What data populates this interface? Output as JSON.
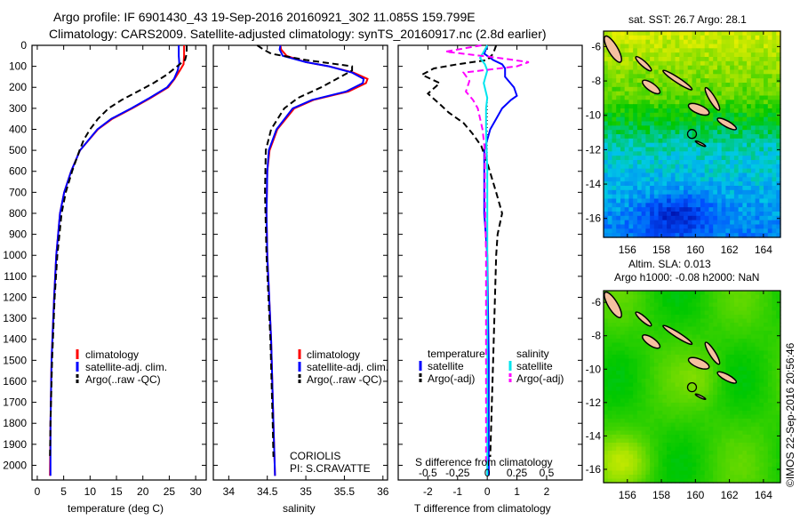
{
  "title": {
    "line1": "Argo profile: IF 6901430_43 19-Sep-2016 20160921_302 11.085S 159.799E",
    "line2": "Climatology: CARS2009. Satellite-adjusted climatology: synTS_20160917.nc (2.8d earlier)"
  },
  "footer_stamp": "©IMOS 22-Sep-2016 20:56:46",
  "colors": {
    "climatology": "#ff0000",
    "satellite": "#0000ff",
    "argo": "#000000",
    "sat_s": "#00e5ee",
    "argo_s": "#ff00ff",
    "land": "#f5c0a0"
  },
  "chart_data": [
    {
      "type": "line",
      "id": "temperature",
      "xlabel": "temperature (deg C)",
      "ylabel": "",
      "xlim": [
        -1,
        32
      ],
      "ylim": [
        0,
        2070
      ],
      "xticks": [
        0,
        5,
        10,
        15,
        20,
        25,
        30
      ],
      "yticks": [
        0,
        100,
        200,
        300,
        400,
        500,
        600,
        700,
        800,
        900,
        1000,
        1100,
        1200,
        1300,
        1400,
        1500,
        1600,
        1700,
        1800,
        1900,
        2000
      ],
      "legend": [
        "climatology",
        "satellite-adj. clim.",
        "Argo(..raw -QC)"
      ],
      "series": [
        {
          "name": "climatology",
          "color": "#ff0000",
          "dash": false,
          "depth": [
            0,
            50,
            90,
            120,
            160,
            200,
            250,
            300,
            350,
            400,
            500,
            600,
            700,
            800,
            1000,
            1200,
            1500,
            1800,
            2050
          ],
          "values": [
            27.8,
            27.8,
            27.7,
            27.0,
            26.0,
            24.8,
            21.5,
            18.0,
            14.2,
            11.5,
            8.1,
            6.4,
            5.1,
            4.3,
            3.6,
            3.2,
            2.7,
            2.5,
            2.4
          ]
        },
        {
          "name": "satellite-adj. clim.",
          "color": "#0000ff",
          "dash": false,
          "depth": [
            0,
            50,
            85,
            120,
            160,
            200,
            250,
            300,
            350,
            400,
            500,
            600,
            700,
            800,
            1000,
            1200,
            1500,
            1800,
            2050
          ],
          "values": [
            26.8,
            26.8,
            26.9,
            26.6,
            25.9,
            24.6,
            21.3,
            17.8,
            14.0,
            11.4,
            8.1,
            6.4,
            5.1,
            4.3,
            3.6,
            3.2,
            2.7,
            2.5,
            2.5
          ]
        },
        {
          "name": "Argo(..raw -QC)",
          "color": "#000000",
          "dash": true,
          "depth": [
            0,
            40,
            70,
            100,
            140,
            180,
            220,
            260,
            300,
            350,
            400,
            450,
            500,
            600,
            700,
            800,
            1000,
            1200,
            1500,
            1800,
            1960
          ],
          "values": [
            28.3,
            28.3,
            28.0,
            26.5,
            24.5,
            22.0,
            19.0,
            16.0,
            13.5,
            11.5,
            10.0,
            8.8,
            8.0,
            6.6,
            5.4,
            4.6,
            3.8,
            3.3,
            2.8,
            2.5,
            2.4
          ]
        }
      ]
    },
    {
      "type": "line",
      "id": "salinity",
      "xlabel": "salinity",
      "xlim": [
        33.8,
        36.06
      ],
      "ylim": [
        0,
        2070
      ],
      "xticks": [
        34,
        34.5,
        35,
        35.5,
        36
      ],
      "legend": [
        "climatology",
        "satellite-adj. clim.",
        "Argo(..raw -QC)"
      ],
      "annotation": [
        "CORIOLIS",
        "PI: S.CRAVATTE"
      ],
      "series": [
        {
          "name": "climatology",
          "color": "#ff0000",
          "dash": false,
          "depth": [
            0,
            20,
            50,
            80,
            100,
            130,
            160,
            180,
            220,
            260,
            300,
            400,
            500,
            600,
            800,
            1000,
            1400,
            1800,
            2050
          ],
          "values": [
            34.67,
            34.68,
            34.75,
            35.0,
            35.3,
            35.62,
            35.8,
            35.78,
            35.55,
            35.1,
            34.85,
            34.63,
            34.53,
            34.5,
            34.49,
            34.5,
            34.55,
            34.58,
            34.6
          ]
        },
        {
          "name": "satellite-adj. clim.",
          "color": "#0000ff",
          "dash": false,
          "depth": [
            0,
            20,
            50,
            80,
            100,
            130,
            160,
            180,
            220,
            260,
            300,
            400,
            500,
            600,
            800,
            1000,
            1400,
            1800,
            2050
          ],
          "values": [
            34.67,
            34.66,
            34.7,
            35.0,
            35.3,
            35.6,
            35.75,
            35.74,
            35.52,
            35.08,
            34.83,
            34.62,
            34.52,
            34.5,
            34.49,
            34.5,
            34.55,
            34.58,
            34.6
          ]
        },
        {
          "name": "Argo(..raw -QC)",
          "color": "#000000",
          "dash": true,
          "depth": [
            0,
            20,
            40,
            70,
            100,
            120,
            150,
            200,
            250,
            300,
            400,
            500,
            700,
            1000,
            1400,
            1800,
            1960
          ],
          "values": [
            34.37,
            34.45,
            34.55,
            35.0,
            35.6,
            35.6,
            35.45,
            35.2,
            34.9,
            34.72,
            34.55,
            34.48,
            34.47,
            34.49,
            34.54,
            34.57,
            34.58
          ]
        }
      ]
    },
    {
      "type": "line",
      "id": "difference",
      "xlabel": "T difference from climatology",
      "xlabel_top": "S difference from climatology",
      "xlim": [
        -3,
        3.2
      ],
      "xlim_s": [
        -0.75,
        0.8
      ],
      "ylim": [
        0,
        2070
      ],
      "xticks": [
        -2,
        -1,
        0,
        1,
        2
      ],
      "xticks_s": [
        "-0.5",
        "-0.25",
        "0",
        "0.25",
        "0.5"
      ],
      "legend_headers": [
        "temperature",
        "salinity"
      ],
      "legend": [
        "satellite",
        "Argo(-adj)",
        "satellite",
        "Argo(-adj)"
      ],
      "series": [
        {
          "name": "T satellite",
          "color": "#0000ff",
          "dash": false,
          "units": "T",
          "depth": [
            0,
            40,
            70,
            90,
            110,
            150,
            200,
            240,
            260,
            300,
            350,
            400,
            500,
            600,
            800,
            1000,
            1500,
            2050
          ],
          "values": [
            0.0,
            -0.1,
            0.2,
            0.5,
            0.6,
            0.6,
            0.9,
            1.0,
            0.8,
            0.5,
            0.3,
            0.1,
            -0.1,
            -0.1,
            -0.1,
            0.0,
            0.05,
            0.05
          ]
        },
        {
          "name": "T Argo(-adj)",
          "color": "#000000",
          "dash": true,
          "units": "T",
          "depth": [
            0,
            40,
            70,
            90,
            110,
            140,
            180,
            230,
            280,
            320,
            370,
            420,
            480,
            560,
            700,
            800,
            900,
            1000,
            1500,
            1960
          ],
          "values": [
            0.3,
            0.2,
            0.0,
            -1.0,
            -1.8,
            -2.2,
            -1.6,
            -2.0,
            -1.6,
            -1.3,
            -0.8,
            -0.5,
            -0.2,
            0.0,
            0.3,
            0.5,
            0.35,
            0.3,
            0.2,
            0.1
          ]
        },
        {
          "name": "S satellite",
          "color": "#00e5ee",
          "dash": false,
          "units": "S",
          "depth": [
            0,
            30,
            60,
            90,
            120,
            180,
            250,
            300,
            400,
            600,
            1000,
            2050
          ],
          "values": [
            0.0,
            -0.03,
            -0.06,
            -0.02,
            0.0,
            -0.03,
            0.0,
            -0.01,
            -0.01,
            0.0,
            0.0,
            0.0
          ]
        },
        {
          "name": "S Argo(-adj)",
          "color": "#ff00ff",
          "dash": true,
          "units": "S",
          "depth": [
            0,
            30,
            60,
            80,
            100,
            130,
            170,
            220,
            260,
            300,
            400,
            500,
            700,
            1000,
            2000
          ],
          "values": [
            -0.05,
            -0.35,
            0.1,
            0.35,
            0.25,
            -0.2,
            -0.15,
            -0.18,
            -0.12,
            -0.08,
            -0.04,
            -0.02,
            -0.02,
            -0.01,
            -0.01
          ]
        }
      ]
    },
    {
      "type": "heatmap",
      "id": "sst-map",
      "title": "sat. SST: 26.7 Argo: 28.1",
      "xlim": [
        154.6,
        165.0
      ],
      "ylim": [
        -17.1,
        -5.1
      ],
      "xticks": [
        156,
        158,
        160,
        162,
        164
      ],
      "yticks": [
        -6,
        -8,
        -10,
        -12,
        -14,
        -16
      ],
      "float_position": [
        159.799,
        -11.085
      ]
    },
    {
      "type": "heatmap",
      "id": "sla-map",
      "title": "Altim. SLA: 0.013",
      "subtitle": "Argo h1000: -0.08 h2000: NaN",
      "xlim": [
        154.6,
        165.0
      ],
      "ylim": [
        -16.8,
        -5.3
      ],
      "xticks": [
        156,
        158,
        160,
        162,
        164
      ],
      "yticks": [
        -6,
        -8,
        -10,
        -12,
        -14,
        -16
      ],
      "float_position": [
        159.799,
        -11.085
      ]
    }
  ],
  "islands": [
    {
      "name": "Bougainville",
      "from": [
        154.7,
        -5.4
      ],
      "to": [
        155.6,
        -6.9
      ],
      "width": 0.55
    },
    {
      "name": "Choiseul",
      "from": [
        156.5,
        -6.6
      ],
      "to": [
        157.4,
        -7.4
      ],
      "width": 0.3
    },
    {
      "name": "Santa Isabel",
      "from": [
        158.1,
        -7.4
      ],
      "to": [
        159.8,
        -8.5
      ],
      "width": 0.3
    },
    {
      "name": "New Georgia",
      "from": [
        156.9,
        -8.0
      ],
      "to": [
        157.9,
        -8.7
      ],
      "width": 0.45
    },
    {
      "name": "Malaita",
      "from": [
        160.6,
        -8.4
      ],
      "to": [
        161.4,
        -9.7
      ],
      "width": 0.35
    },
    {
      "name": "Guadalcanal",
      "from": [
        159.6,
        -9.4
      ],
      "to": [
        160.8,
        -9.9
      ],
      "width": 0.5
    },
    {
      "name": "Makira",
      "from": [
        161.3,
        -10.2
      ],
      "to": [
        162.4,
        -10.8
      ],
      "width": 0.35
    },
    {
      "name": "Rennell",
      "from": [
        160.0,
        -11.5
      ],
      "to": [
        160.6,
        -11.8
      ],
      "width": 0.12
    }
  ]
}
